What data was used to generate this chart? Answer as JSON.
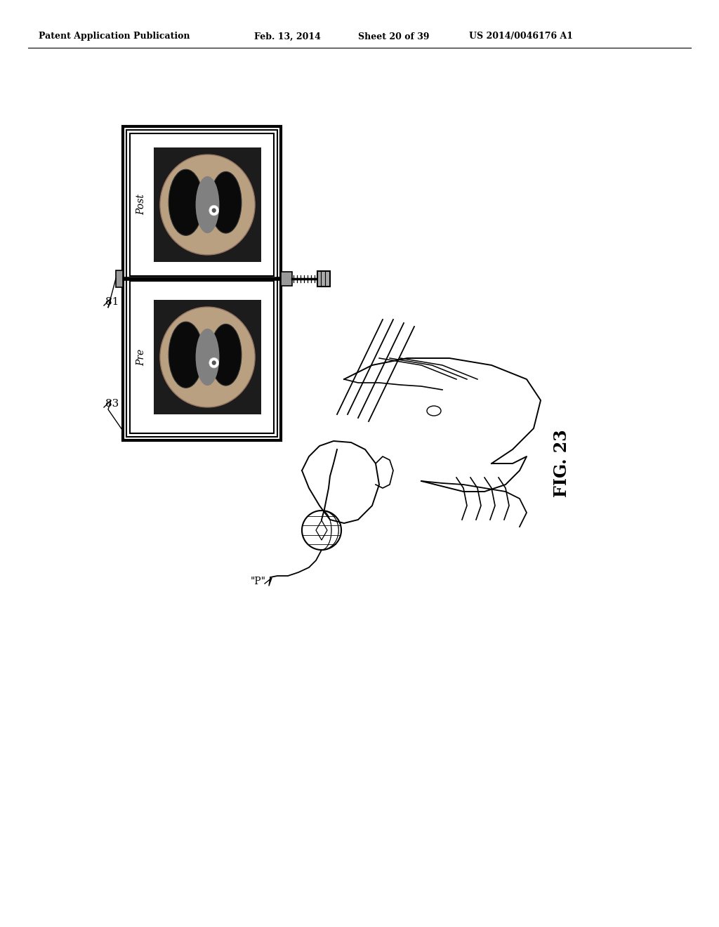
{
  "background_color": "#ffffff",
  "header_text": "Patent Application Publication",
  "header_date": "Feb. 13, 2014",
  "header_sheet": "Sheet 20 of 39",
  "header_patent": "US 2014/0046176 A1",
  "fig_label": "FIG. 23",
  "label_81": "81",
  "label_83": "83",
  "label_p": "\"P\"",
  "post_label": "Post",
  "pre_label": "Pre"
}
